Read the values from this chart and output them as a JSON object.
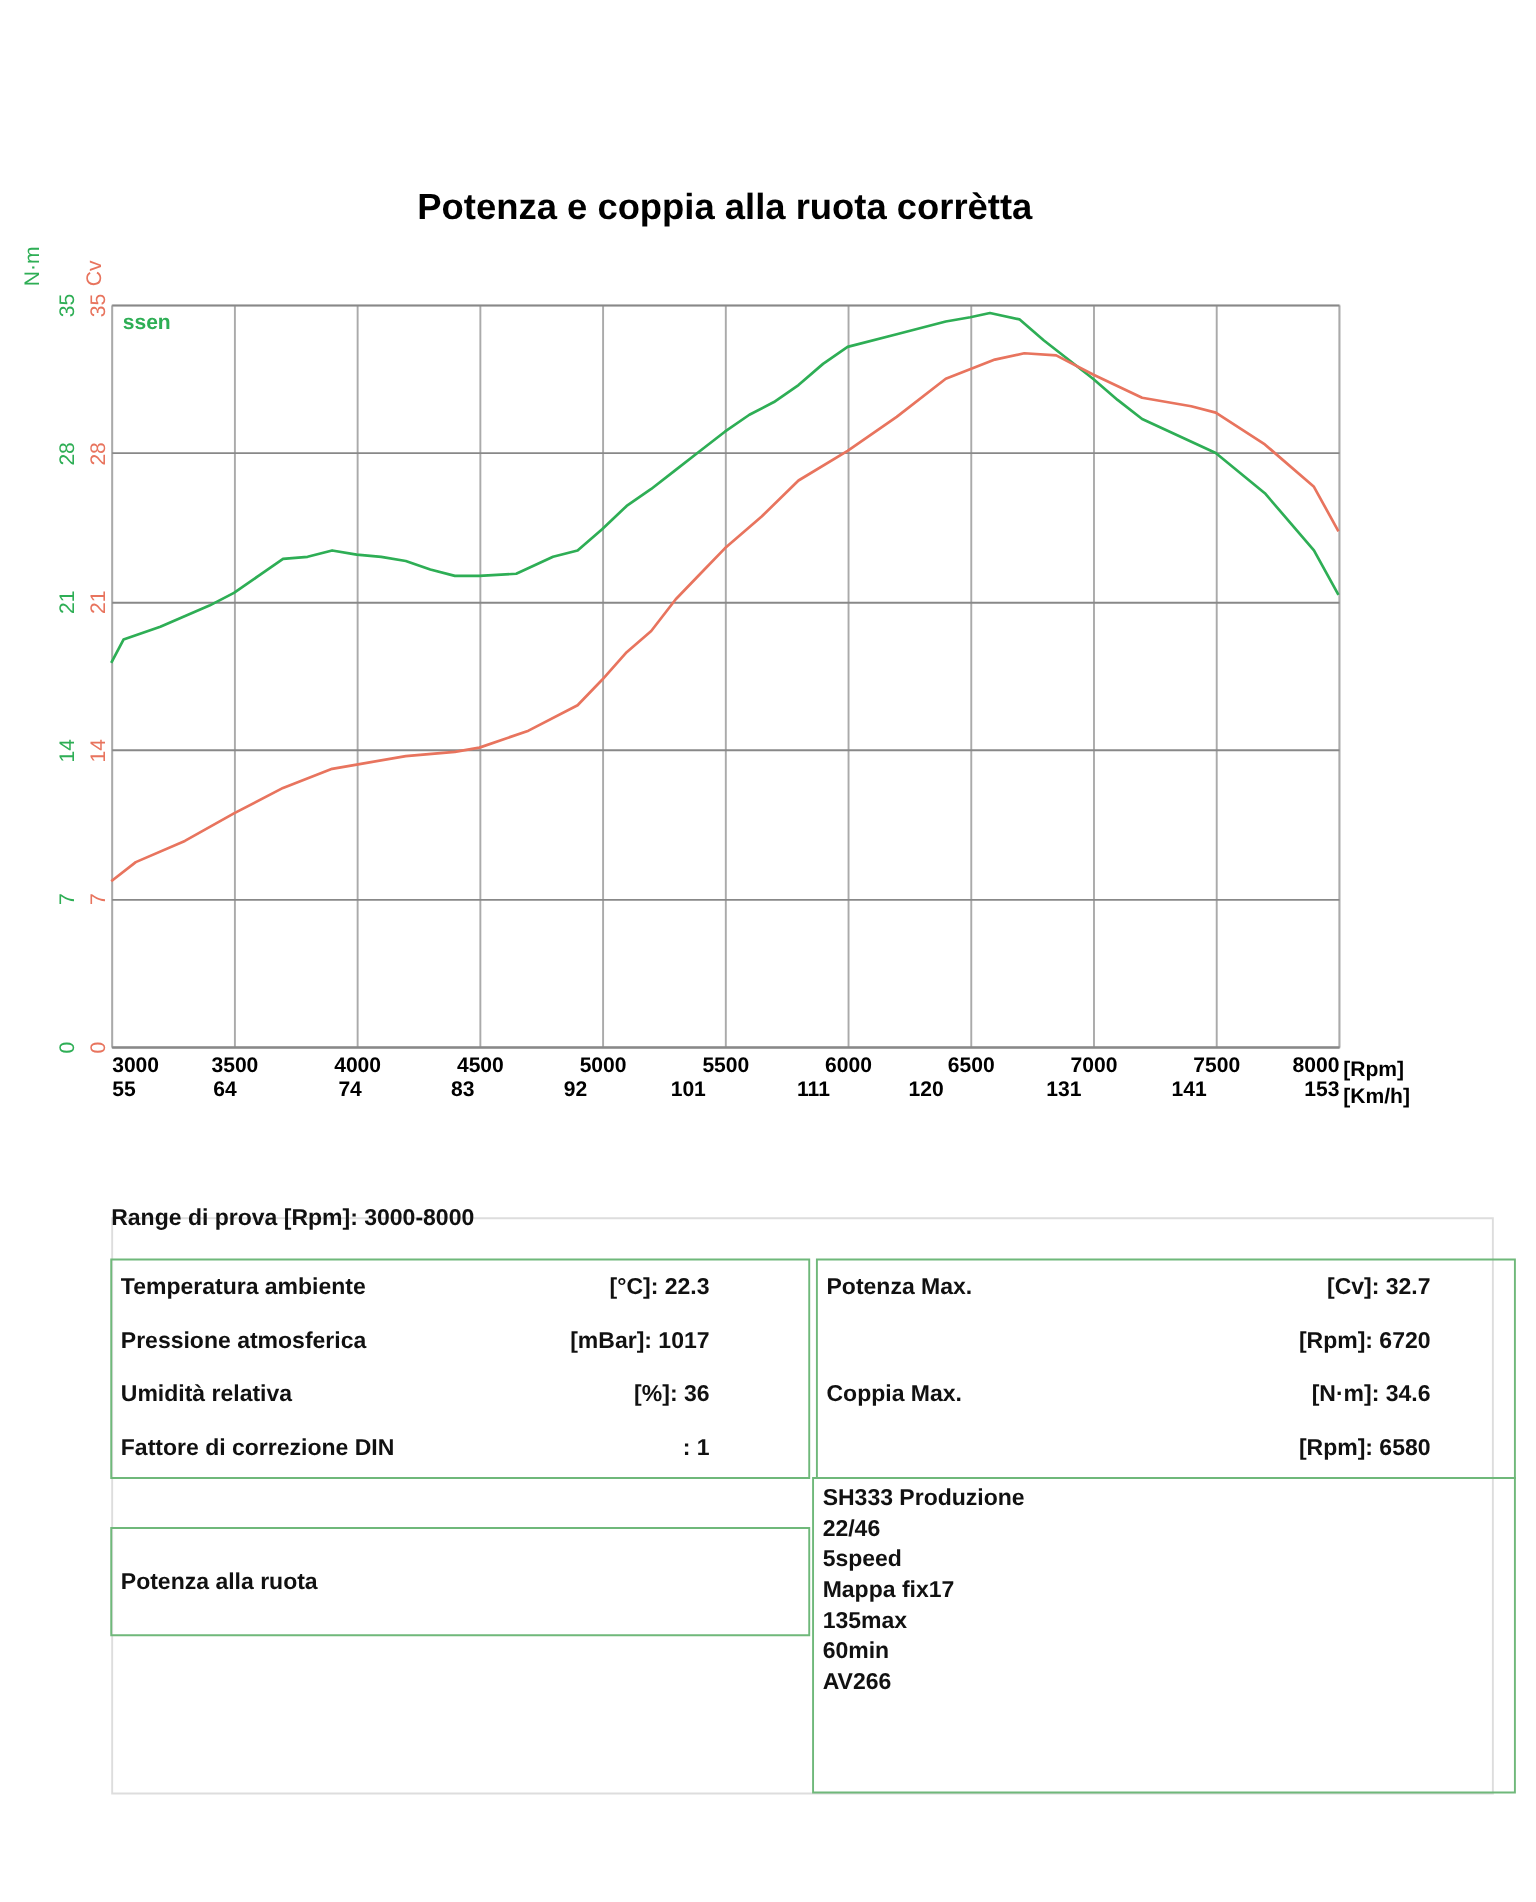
{
  "chart_data": {
    "type": "line",
    "title": "Potenza e coppia alla ruota corrètta",
    "xlabel": "[Rpm]",
    "ylabel": "N·m",
    "y2label": "Cv",
    "x2label": "[Km/h]",
    "xlim": [
      3000,
      8000
    ],
    "xticks": [
      3000,
      3500,
      4000,
      4500,
      5000,
      5500,
      6000,
      6500,
      7000,
      7500,
      8000
    ],
    "x2lim": [
      55,
      153
    ],
    "x2ticks": [
      55,
      64,
      74,
      83,
      92,
      101,
      111,
      120,
      131,
      141,
      153
    ],
    "ylim": [
      0,
      35
    ],
    "yticks": [
      0,
      7,
      14,
      21,
      28,
      35
    ],
    "y2lim": [
      0,
      35
    ],
    "y2ticks": [
      0,
      7,
      14,
      21,
      28,
      35
    ],
    "grid": true,
    "legend": false,
    "series": [
      {
        "name": "ssen",
        "color": "#2eae55",
        "x": [
          3000,
          3050,
          3200,
          3400,
          3500,
          3600,
          3700,
          3800,
          3900,
          4000,
          4100,
          4200,
          4300,
          4400,
          4500,
          4650,
          4800,
          4900,
          5000,
          5100,
          5200,
          5300,
          5400,
          5500,
          5600,
          5700,
          5800,
          5900,
          6000,
          6200,
          6400,
          6500,
          6580,
          6700,
          6800,
          7000,
          7100,
          7200,
          7500,
          7700,
          7900,
          8000
        ],
        "values": [
          18.1,
          19.2,
          19.8,
          20.8,
          21.4,
          22.2,
          23.0,
          23.1,
          23.4,
          23.2,
          23.1,
          22.9,
          22.5,
          22.2,
          22.2,
          22.3,
          23.1,
          23.4,
          24.4,
          25.5,
          26.3,
          27.2,
          28.1,
          29.0,
          29.8,
          30.4,
          31.2,
          32.2,
          33.0,
          33.6,
          34.2,
          34.4,
          34.6,
          34.3,
          33.3,
          31.5,
          30.5,
          29.6,
          28.0,
          26.1,
          23.4,
          21.3
        ]
      },
      {
        "color": "#e8745e",
        "axis": "y2",
        "x": [
          3000,
          3100,
          3300,
          3500,
          3700,
          3900,
          4000,
          4200,
          4400,
          4500,
          4700,
          4900,
          5000,
          5100,
          5200,
          5300,
          5400,
          5500,
          5650,
          5800,
          6000,
          6200,
          6400,
          6600,
          6720,
          6850,
          7000,
          7200,
          7400,
          7500,
          7700,
          7900,
          8000
        ],
        "values": [
          7.8,
          8.7,
          9.7,
          11.0,
          12.2,
          13.1,
          13.3,
          13.7,
          13.9,
          14.1,
          14.9,
          16.1,
          17.3,
          18.6,
          19.6,
          21.1,
          22.3,
          23.5,
          25.0,
          26.7,
          28.1,
          29.7,
          31.5,
          32.4,
          32.7,
          32.6,
          31.7,
          30.6,
          30.2,
          29.9,
          28.4,
          26.4,
          24.3
        ]
      }
    ],
    "annotations": [
      "Range di prova [Rpm]: 3000-8000",
      "Temperatura ambiente",
      "[°C]: 22.3",
      "Pressione atmosferica",
      "[mBar]: 1017",
      "Umidità relativa",
      "[%]: 36",
      "Fattore di correzione DIN",
      ": 1",
      "Potenza Max.",
      "[Cv]: 32.7",
      "[Rpm]: 6720",
      "Coppia Max.",
      "[N·m]: 34.6",
      "[Rpm]: 6580",
      "Potenza alla ruota",
      "SH333 Produzione",
      "22/46",
      "5speed",
      "Mappa fix17",
      "135max",
      "60min",
      "AV266"
    ]
  }
}
